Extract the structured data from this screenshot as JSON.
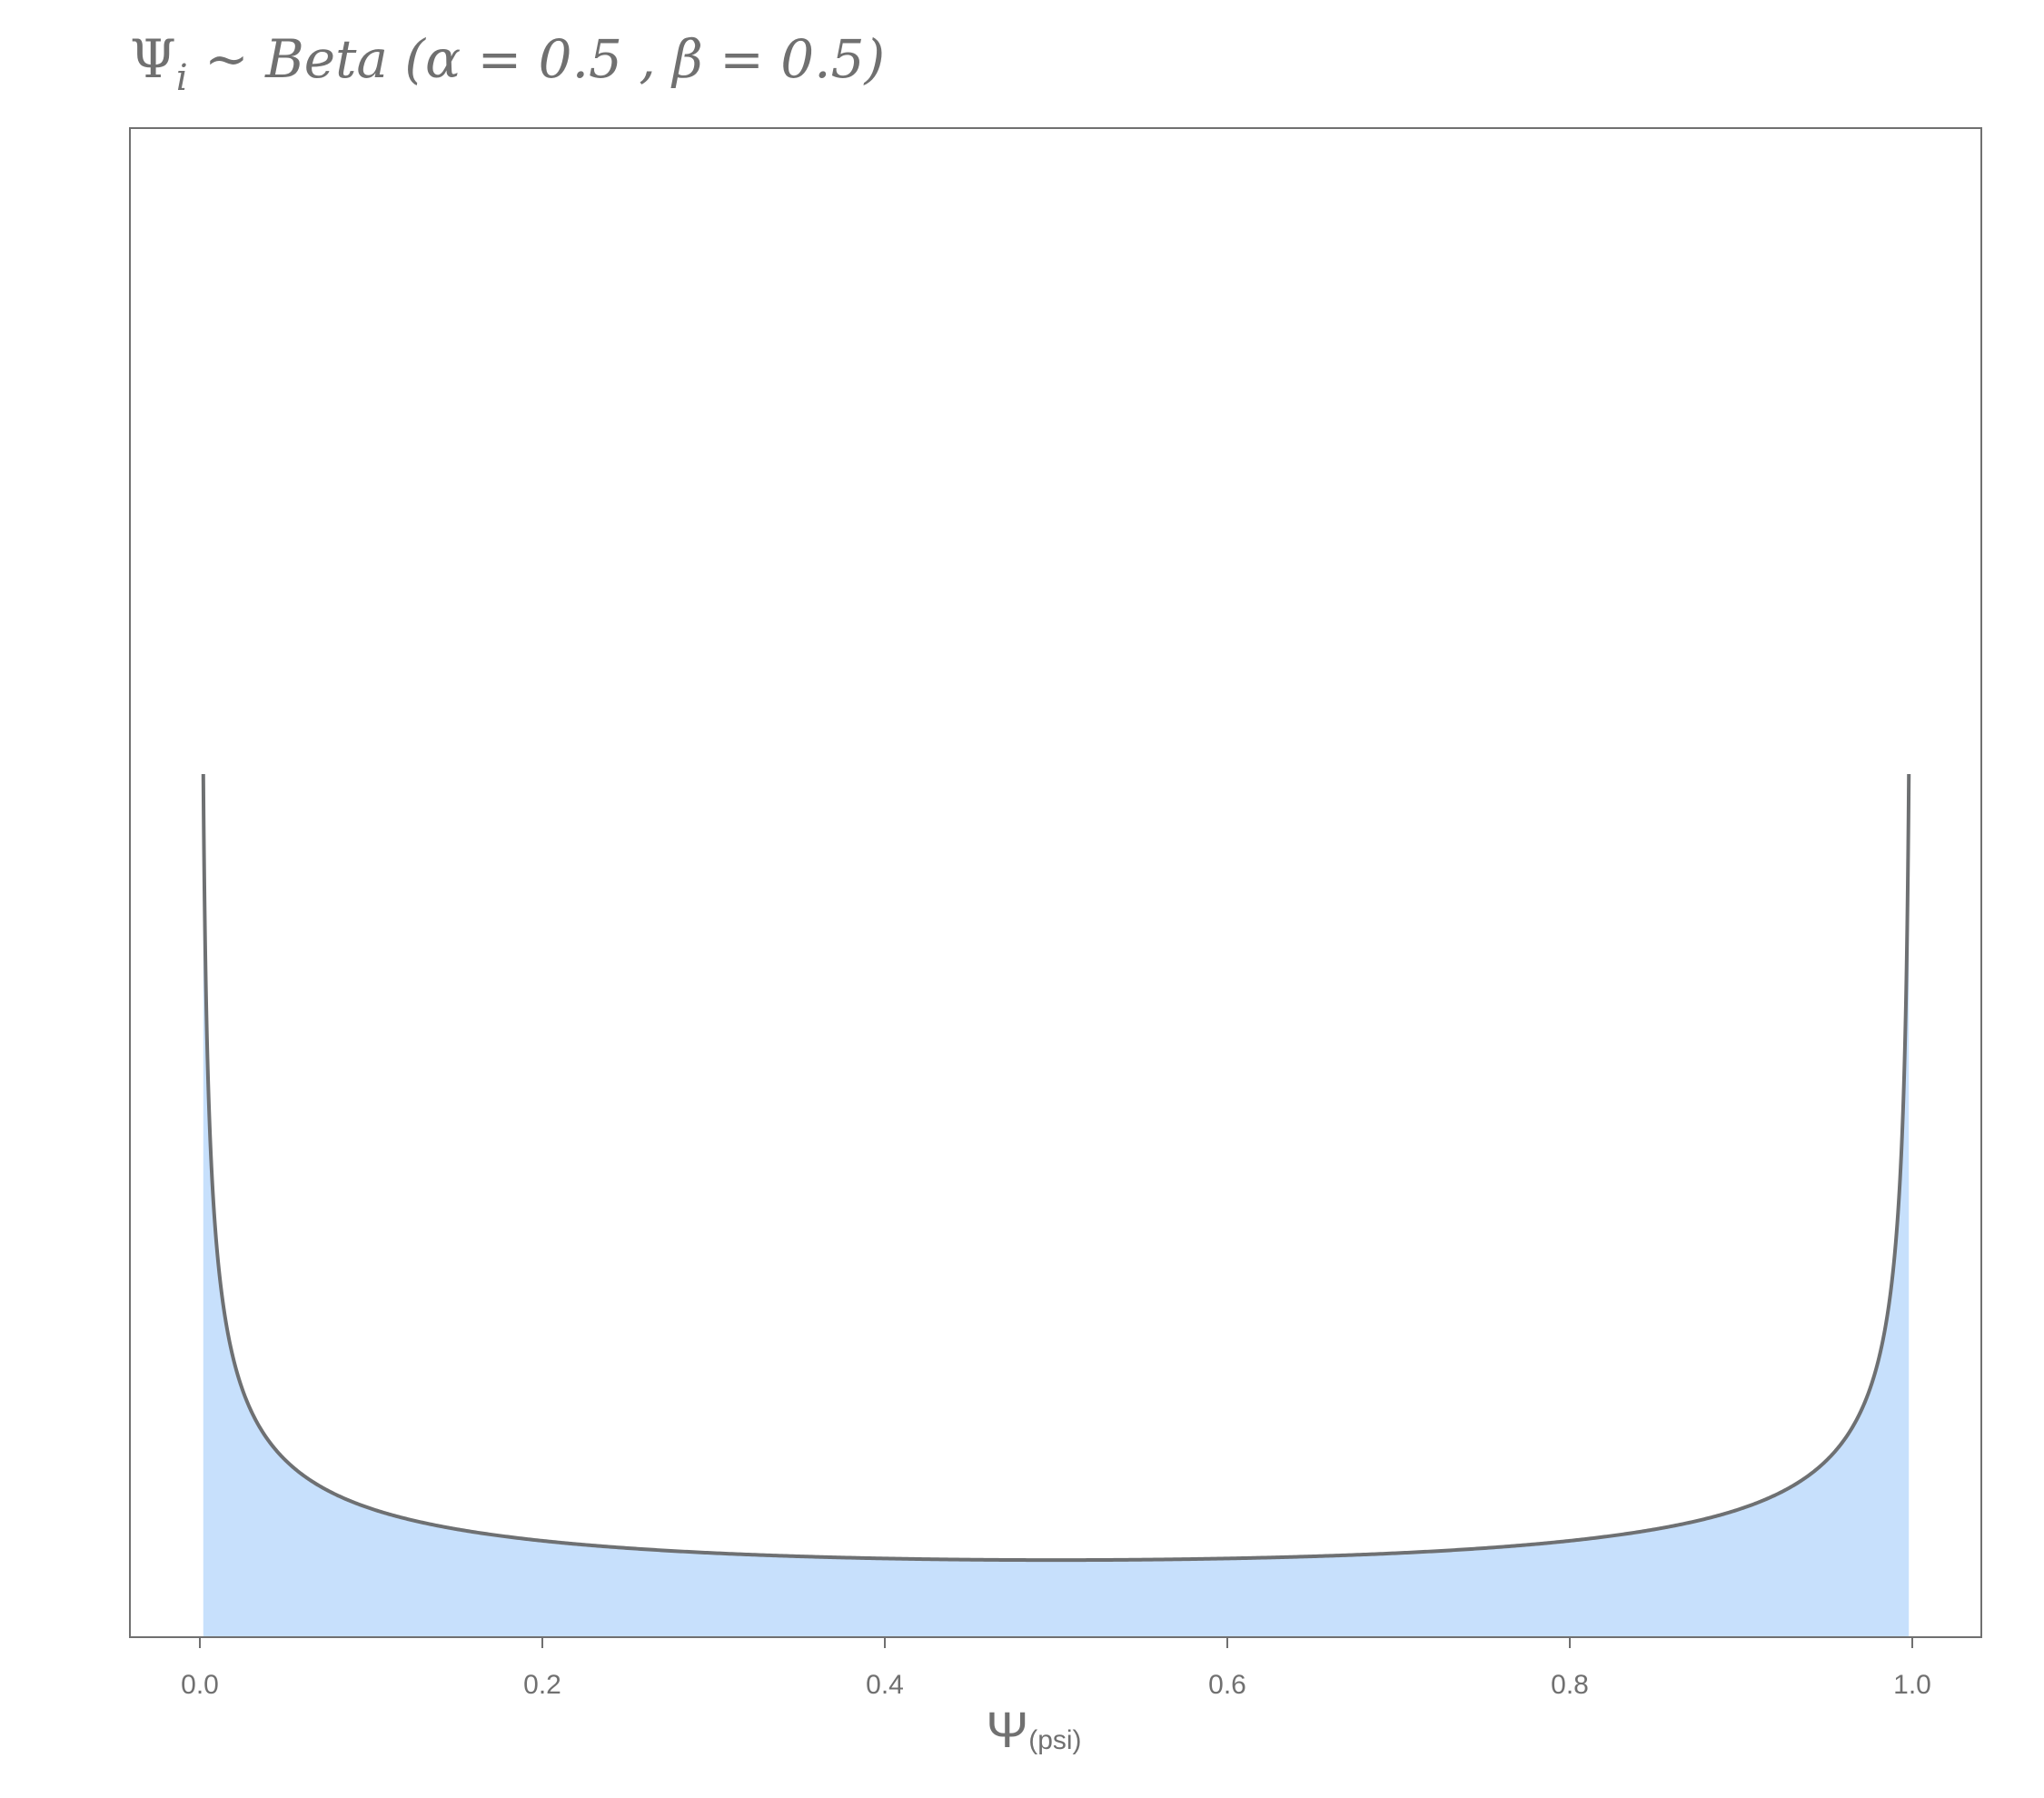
{
  "chart_data": {
    "type": "area",
    "title": "Ψi ~ Beta (α = 0.5 , β = 0.5)",
    "title_parts": {
      "psi": "Ψ",
      "sub": "i",
      "rest": " ~ Beta (α =  0.5 , β =  0.5)"
    },
    "xlabel": "Ψ(psi)",
    "xlabel_parts": {
      "psi": "Ψ",
      "sub": "(psi)"
    },
    "ylabel": "",
    "distribution": "beta",
    "alpha": 0.5,
    "beta": 0.5,
    "xlim": [
      0.0,
      1.0
    ],
    "ylim_display": [
      0,
      12
    ],
    "curve_domain": [
      0.002,
      0.998
    ],
    "x_ticks": [
      "0.0",
      "0.2",
      "0.4",
      "0.6",
      "0.8",
      "1.0"
    ],
    "y_axis_shown": false,
    "grid": false,
    "legend": "none",
    "colors": {
      "fill": "#c7e0fc",
      "line": "#6e7072",
      "frame": "#707070",
      "text": "#707070"
    }
  }
}
